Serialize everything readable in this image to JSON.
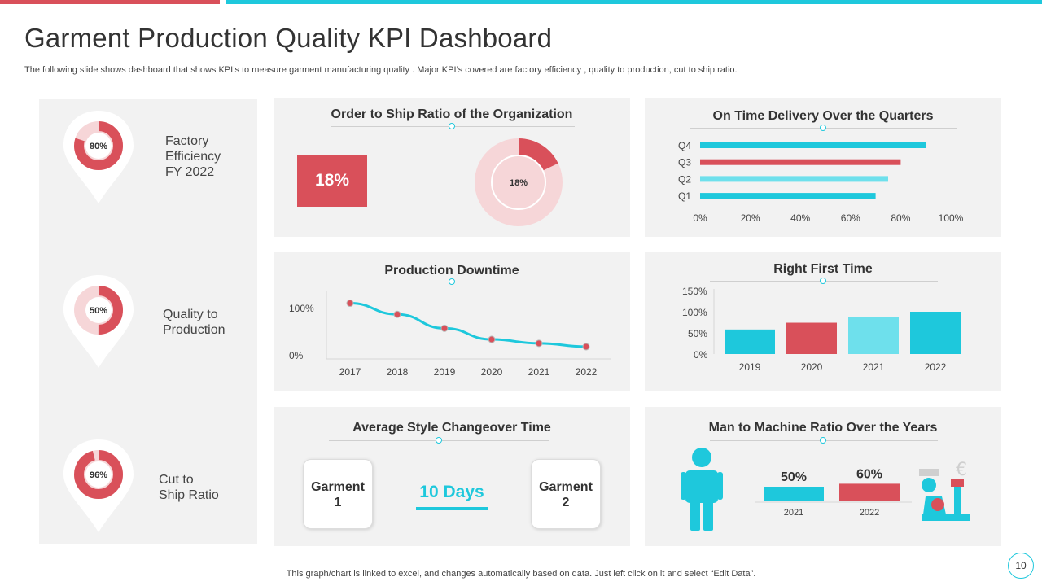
{
  "header": {
    "title": "Garment Production Quality KPI Dashboard",
    "subtitle": "The following slide shows dashboard that shows KPI’s to measure garment manufacturing quality . Major KPI’s covered are factory  efficiency ,  quality to production, cut to ship ratio."
  },
  "kpis": [
    {
      "value_label": "80%",
      "value": 80,
      "label_lines": [
        "Factory",
        "Efficiency",
        "FY 2022"
      ]
    },
    {
      "value_label": "50%",
      "value": 50,
      "label_lines": [
        "Quality to",
        "Production"
      ]
    },
    {
      "value_label": "96%",
      "value": 96,
      "label_lines": [
        "Cut to",
        "Ship Ratio"
      ]
    }
  ],
  "order_ship": {
    "title": "Order to Ship Ratio of the Organization",
    "value_label": "18%",
    "donut_label": "18%",
    "value": 18
  },
  "delivery": {
    "title": "On Time Delivery Over the Quarters",
    "x_ticks": [
      "0%",
      "20%",
      "40%",
      "60%",
      "80%",
      "100%"
    ]
  },
  "downtime": {
    "title": "Production Downtime",
    "y_ticks": [
      "100%",
      "0%"
    ]
  },
  "rft": {
    "title": "Right First  Time",
    "y_ticks": [
      "150%",
      "100%",
      "50%",
      "0%"
    ]
  },
  "changeover": {
    "title": "Average Style Changeover Time",
    "garment1_lines": [
      "Garment",
      "1"
    ],
    "garment2_lines": [
      "Garment",
      "2"
    ],
    "value_label": "10 Days"
  },
  "man_machine": {
    "title": "Man to Machine Ratio Over the Years"
  },
  "chart_data": [
    {
      "type": "bar",
      "orientation": "horizontal",
      "categories": [
        "Q1",
        "Q2",
        "Q3",
        "Q4"
      ],
      "values": [
        70,
        75,
        80,
        90
      ],
      "xlim": [
        0,
        100
      ],
      "colors": [
        "#1ec8dc",
        "#6ee0ec",
        "#d9505a",
        "#1ec8dc"
      ]
    },
    {
      "type": "line",
      "x": [
        "2017",
        "2018",
        "2019",
        "2020",
        "2021",
        "2022"
      ],
      "values": [
        100,
        80,
        55,
        35,
        28,
        22
      ],
      "ylim": [
        0,
        130
      ]
    },
    {
      "type": "bar",
      "categories": [
        "2019",
        "2020",
        "2021",
        "2022"
      ],
      "values": [
        58,
        74,
        88,
        100
      ],
      "ylim": [
        0,
        150
      ],
      "colors": [
        "#1ec8dc",
        "#d9505a",
        "#6ee0ec",
        "#1ec8dc"
      ]
    },
    {
      "type": "bar",
      "categories": [
        "2021",
        "2022"
      ],
      "values": [
        50,
        60
      ],
      "value_labels": [
        "50%",
        "60%"
      ],
      "colors": [
        "#1ec8dc",
        "#d9505a"
      ]
    }
  ],
  "footer": {
    "note": "This graph/chart is linked to excel,  and changes automatically based on data. Just left click on it and select “Edit Data”.",
    "page_number": "10"
  },
  "colors": {
    "red": "#d9505a",
    "teal": "#1ec8dc",
    "light_teal": "#6ee0ec",
    "panel": "#f2f2f2",
    "pink": "#f6d6d8"
  }
}
